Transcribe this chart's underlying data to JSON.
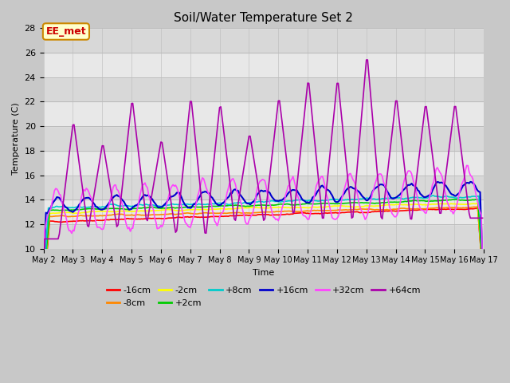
{
  "title": "Soil/Water Temperature Set 2",
  "xlabel": "Time",
  "ylabel": "Temperature (C)",
  "ylim": [
    10,
    28
  ],
  "xtick_labels": [
    "May 2",
    "May 3",
    "May 4",
    "May 5",
    "May 6",
    "May 7",
    "May 8",
    "May 9",
    "May 10",
    "May 11",
    "May 12",
    "May 13",
    "May 14",
    "May 15",
    "May 16",
    "May 17"
  ],
  "legend_entries": [
    "-16cm",
    "-8cm",
    "-2cm",
    "+2cm",
    "+8cm",
    "+16cm",
    "+32cm",
    "+64cm"
  ],
  "legend_colors": [
    "#ff0000",
    "#ff8800",
    "#ffff00",
    "#00cc00",
    "#00cccc",
    "#0000cc",
    "#ff44ff",
    "#aa00aa"
  ],
  "annotation_text": "EE_met",
  "annotation_bg": "#ffffcc",
  "annotation_border": "#cc8800",
  "fig_bg": "#c8c8c8",
  "plot_bg": "#e8e8e8"
}
